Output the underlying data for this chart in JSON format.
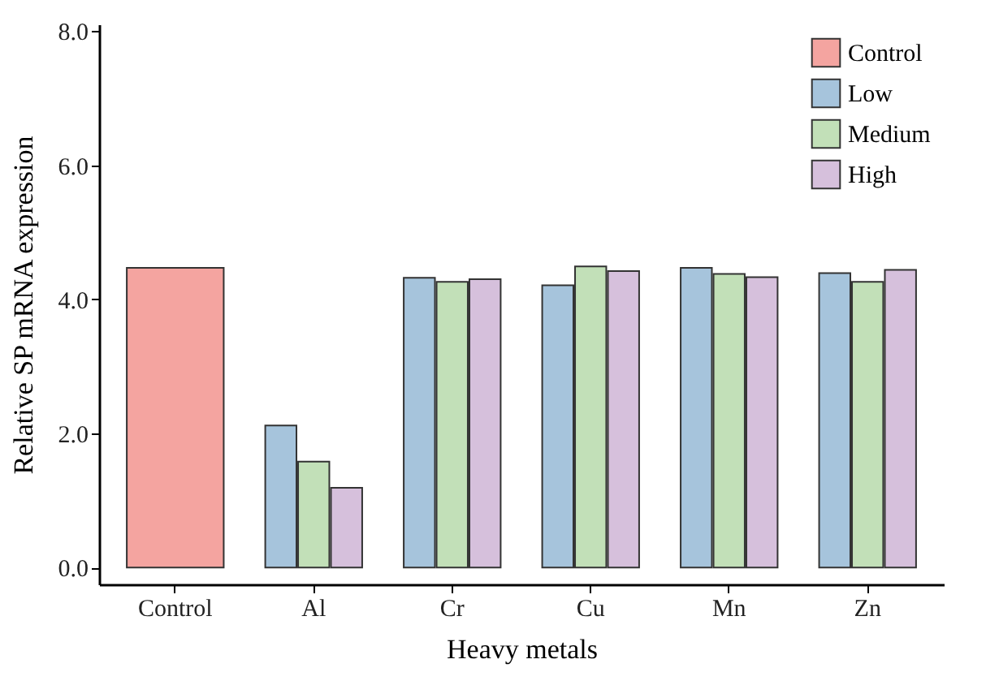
{
  "chart_data": {
    "type": "bar",
    "xlabel": "Heavy metals",
    "ylabel": "Relative SP mRNA expression",
    "categories": [
      "Control",
      "Al",
      "Cr",
      "Cu",
      "Mn",
      "Zn"
    ],
    "series": [
      {
        "name": "Control",
        "color": "#f4a4a0",
        "values": [
          4.47,
          null,
          null,
          null,
          null,
          null
        ]
      },
      {
        "name": "Low",
        "color": "#a6c4dc",
        "values": [
          null,
          2.12,
          4.32,
          4.21,
          4.47,
          4.39
        ]
      },
      {
        "name": "Medium",
        "color": "#c2e0b8",
        "values": [
          null,
          1.58,
          4.26,
          4.49,
          4.38,
          4.26
        ]
      },
      {
        "name": "High",
        "color": "#d6c0dc",
        "values": [
          null,
          1.19,
          4.3,
          4.42,
          4.33,
          4.44
        ]
      }
    ],
    "ylim": [
      -0.25,
      8.1
    ],
    "yticks": [
      {
        "value": 0,
        "label": "0.0"
      },
      {
        "value": 2,
        "label": "2.0"
      },
      {
        "value": 4,
        "label": "4.0"
      },
      {
        "value": 6,
        "label": "6.0"
      },
      {
        "value": 8,
        "label": "8.0"
      }
    ],
    "grid": false,
    "legend": "top right"
  }
}
